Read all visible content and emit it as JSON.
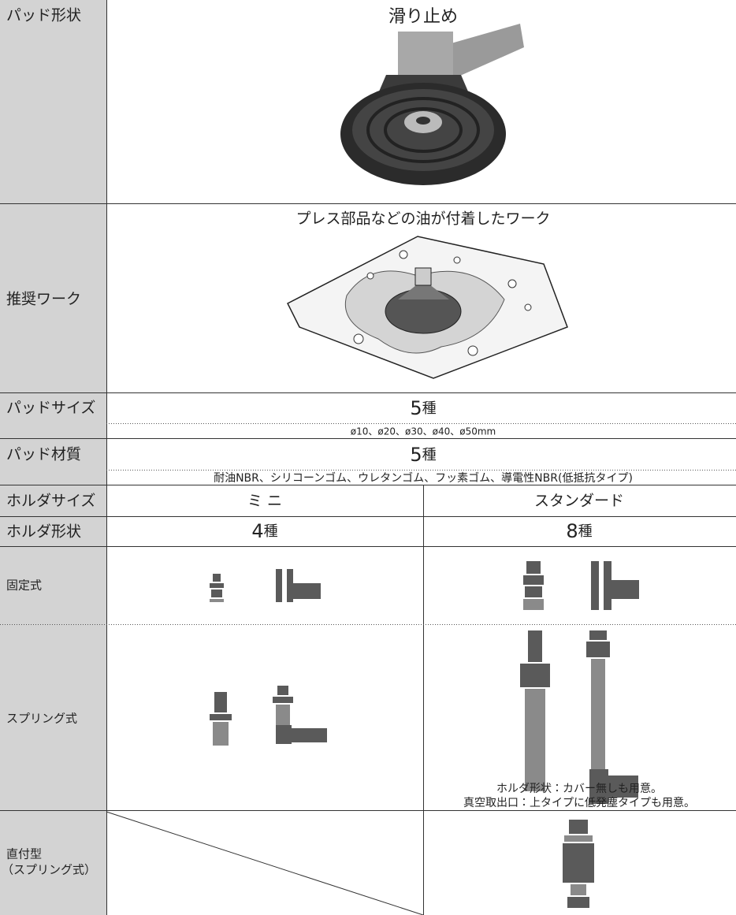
{
  "rows": [
    {
      "label": "パッド形状",
      "title": "滑り止め"
    },
    {
      "label": "推奨ワーク",
      "caption": "プレス部品などの油が付着したワーク"
    },
    {
      "label": "パッドサイズ",
      "count": "5",
      "unit": "種",
      "detail": "ø10、ø20、ø30、ø40、ø50mm"
    },
    {
      "label": "パッド材質",
      "count": "5",
      "unit": "種",
      "detail": "耐油NBR、シリコーンゴム、ウレタンゴム、フッ素ゴム、導電性NBR(低抵抗タイプ)"
    },
    {
      "label": "ホルダサイズ",
      "mini": "ミ ニ",
      "standard": "スタンダード"
    },
    {
      "label": "ホルダ形状",
      "mini": {
        "count": "4",
        "unit": "種"
      },
      "standard": {
        "count": "8",
        "unit": "種"
      }
    },
    {
      "label": "固定式"
    },
    {
      "label": "スプリング式",
      "notes": [
        "ホルダ形状：カバー無しも用意。",
        "真空取出口：上タイプに低発塵タイプも用意。"
      ]
    },
    {
      "label": [
        "直付型",
        "（スプリング式）"
      ]
    }
  ]
}
